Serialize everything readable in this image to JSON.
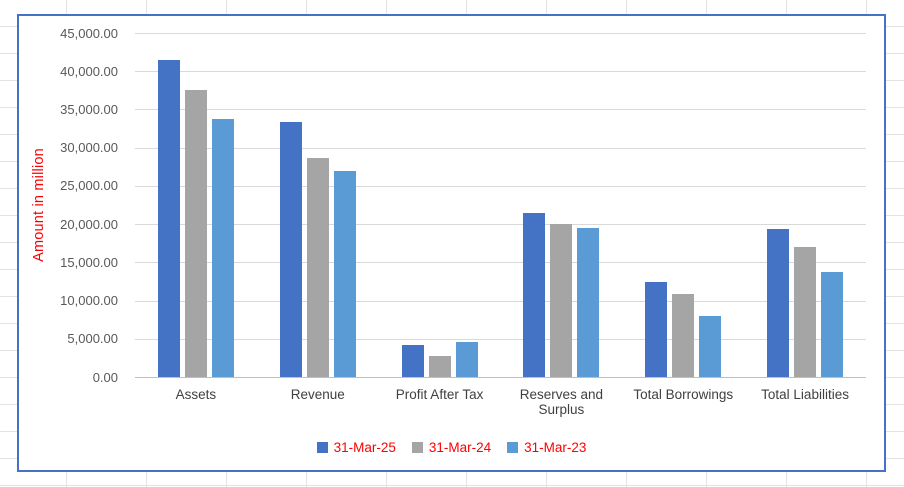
{
  "chart_data": {
    "type": "bar",
    "title": "",
    "xlabel": "",
    "ylabel": "Amount in million",
    "categories": [
      "Assets",
      "Revenue",
      "Profit After Tax",
      "Reserves and Surplus",
      "Total Borrowings",
      "Total Liabilities"
    ],
    "series": [
      {
        "name": "31-Mar-25",
        "color": "#4472C4",
        "values": [
          41500,
          33300,
          4200,
          21500,
          12400,
          19400
        ]
      },
      {
        "name": "31-Mar-24",
        "color": "#A5A5A5",
        "values": [
          37600,
          28600,
          2800,
          20000,
          10900,
          17000
        ]
      },
      {
        "name": "31-Mar-23",
        "color": "#5B9BD5",
        "values": [
          33700,
          26900,
          4600,
          19500,
          8000,
          13800
        ]
      }
    ],
    "ylim": [
      0,
      45000
    ],
    "ytick_step": 5000,
    "y_tick_labels": [
      "45,000.00",
      "40,000.00",
      "35,000.00",
      "30,000.00",
      "25,000.00",
      "20,000.00",
      "15,000.00",
      "10,000.00",
      "5,000.00",
      "0.00"
    ],
    "grid": true,
    "legend_position": "bottom"
  },
  "colors": {
    "series_31_mar_25": "#4472C4",
    "series_31_mar_24": "#A5A5A5",
    "series_31_mar_23": "#5B9BD5",
    "axis_tick_text": "#595959",
    "category_text": "#404040",
    "gridline": "#D9D9D9",
    "axis_line": "#BFBFBF",
    "chart_border": "#4472C4",
    "sheet_gridline": "#E2E2E2",
    "red_text": "#FF0000"
  }
}
